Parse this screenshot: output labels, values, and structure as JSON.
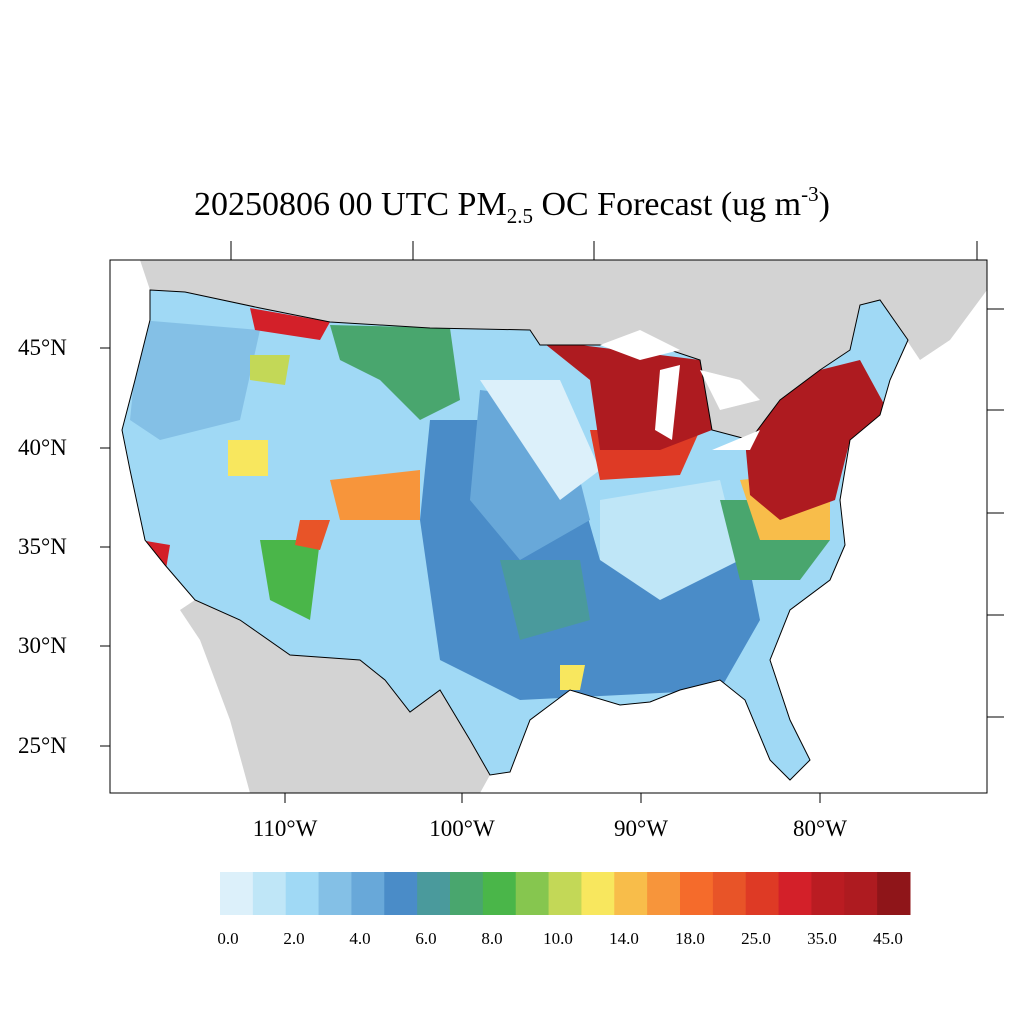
{
  "title": {
    "main": "20250806 00 UTC PM",
    "sub": "2.5",
    "mid": " OC Forecast (ug m",
    "sup": "-3",
    "end": ")"
  },
  "lat_labels": [
    "45°N",
    "40°N",
    "35°N",
    "30°N",
    "25°N"
  ],
  "lon_labels": [
    "110°W",
    "100°W",
    "90°W",
    "80°W"
  ],
  "colorbar": {
    "labels": [
      "0.0",
      "2.0",
      "4.0",
      "6.0",
      "8.0",
      "10.0",
      "14.0",
      "18.0",
      "25.0",
      "35.0",
      "45.0"
    ],
    "colors": [
      "#dcf0fa",
      "#bfe6f7",
      "#a0d9f5",
      "#84c0e6",
      "#68a8d9",
      "#4a8cc8",
      "#4a9a9c",
      "#49a66e",
      "#4ab649",
      "#86c64f",
      "#c3d857",
      "#f8e75e",
      "#f8bd4a",
      "#f7953b",
      "#f56b2b",
      "#e85428",
      "#de3a25",
      "#d32029",
      "#ba1c22",
      "#ae1b20",
      "#8f1519"
    ]
  },
  "colors": {
    "land_outside": "#d3d3d3",
    "water": "#ffffff",
    "border": "#000000"
  }
}
